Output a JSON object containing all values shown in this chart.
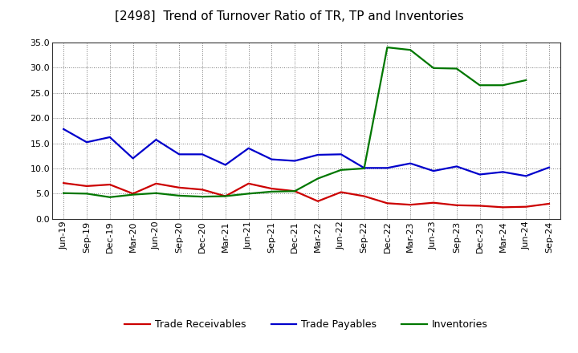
{
  "title": "[2498]  Trend of Turnover Ratio of TR, TP and Inventories",
  "ylim": [
    0.0,
    35.0
  ],
  "yticks": [
    0.0,
    5.0,
    10.0,
    15.0,
    20.0,
    25.0,
    30.0,
    35.0
  ],
  "background_color": "#ffffff",
  "grid_color": "#777777",
  "x_labels": [
    "Jun-19",
    "Sep-19",
    "Dec-19",
    "Mar-20",
    "Jun-20",
    "Sep-20",
    "Dec-20",
    "Mar-21",
    "Jun-21",
    "Sep-21",
    "Dec-21",
    "Mar-22",
    "Jun-22",
    "Sep-22",
    "Dec-22",
    "Mar-23",
    "Jun-23",
    "Sep-23",
    "Dec-23",
    "Mar-24",
    "Jun-24",
    "Sep-24"
  ],
  "trade_receivables": [
    7.1,
    6.5,
    6.8,
    5.0,
    7.0,
    6.2,
    5.8,
    4.5,
    7.0,
    6.0,
    5.5,
    3.5,
    5.3,
    4.5,
    3.1,
    2.8,
    3.2,
    2.7,
    2.6,
    2.3,
    2.4,
    3.0
  ],
  "trade_payables": [
    17.8,
    15.2,
    16.2,
    12.0,
    15.7,
    12.8,
    12.8,
    10.7,
    14.0,
    11.8,
    11.5,
    12.7,
    12.8,
    10.1,
    10.1,
    11.0,
    9.5,
    10.4,
    8.8,
    9.3,
    8.5,
    10.2
  ],
  "inventories": [
    5.1,
    5.0,
    4.3,
    4.8,
    5.1,
    4.6,
    4.4,
    4.5,
    5.0,
    5.4,
    5.5,
    8.0,
    9.7,
    10.0,
    34.0,
    33.5,
    29.9,
    29.8,
    26.5,
    26.5,
    27.5,
    null
  ],
  "color_tr": "#cc0000",
  "color_tp": "#0000cc",
  "color_inv": "#007700",
  "legend_labels": [
    "Trade Receivables",
    "Trade Payables",
    "Inventories"
  ],
  "line_width": 1.6,
  "title_fontsize": 11,
  "tick_fontsize": 8,
  "legend_fontsize": 9
}
